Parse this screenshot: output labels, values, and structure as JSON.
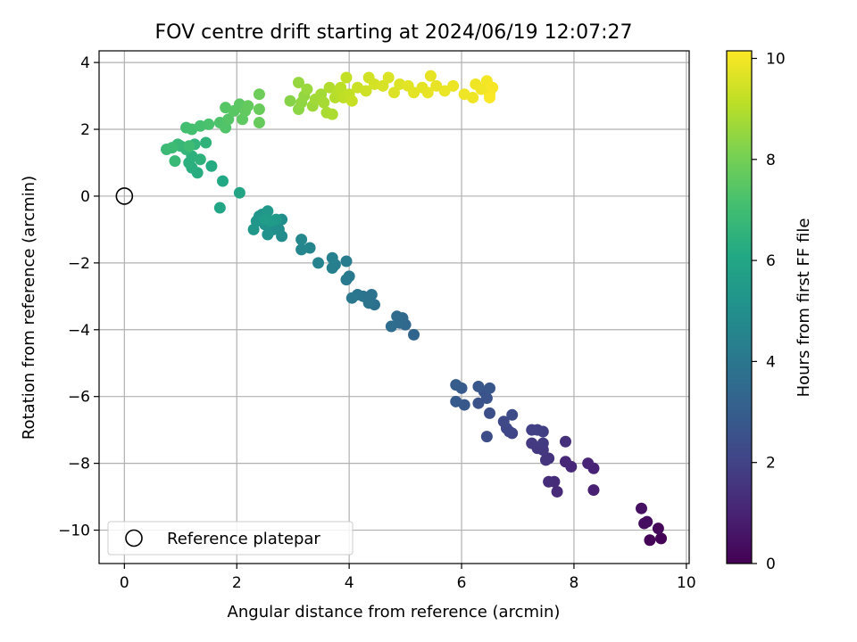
{
  "chart_data": {
    "type": "scatter",
    "title": "FOV centre drift starting at 2024/06/19 12:07:27",
    "xlabel": "Angular distance from reference (arcmin)",
    "ylabel": "Rotation from reference (arcmin)",
    "xlim": [
      -0.45,
      10.05
    ],
    "ylim": [
      -11.0,
      4.35
    ],
    "xticks": [
      0,
      2,
      4,
      6,
      8,
      10
    ],
    "yticks": [
      -10,
      -8,
      -6,
      -4,
      -2,
      0,
      2,
      4
    ],
    "xtick_labels": [
      "0",
      "2",
      "4",
      "6",
      "8",
      "10"
    ],
    "ytick_labels": [
      "−10",
      "−8",
      "−6",
      "−4",
      "−2",
      "0",
      "2",
      "4"
    ],
    "grid": true,
    "colormap": "viridis",
    "colorbar": {
      "label": "Hours from first FF file",
      "min": 0,
      "max": 10.15,
      "ticks": [
        0,
        2,
        4,
        6,
        8,
        10
      ],
      "tick_labels": [
        "0",
        "2",
        "4",
        "6",
        "8",
        "10"
      ]
    },
    "legend": {
      "placement": "lower-left",
      "entries": [
        {
          "label": "Reference platepar",
          "marker": "open-circle"
        }
      ]
    },
    "reference_point": {
      "x": 0,
      "y": 0
    },
    "points": [
      {
        "x": 9.55,
        "y": -10.25,
        "t": 0.05
      },
      {
        "x": 9.35,
        "y": -10.3,
        "t": 0.1
      },
      {
        "x": 9.5,
        "y": -9.95,
        "t": 0.2
      },
      {
        "x": 9.3,
        "y": -9.75,
        "t": 0.3
      },
      {
        "x": 9.25,
        "y": -9.8,
        "t": 0.35
      },
      {
        "x": 9.2,
        "y": -9.35,
        "t": 0.45
      },
      {
        "x": 8.35,
        "y": -8.8,
        "t": 0.9
      },
      {
        "x": 8.35,
        "y": -8.15,
        "t": 1.0
      },
      {
        "x": 8.25,
        "y": -8.0,
        "t": 1.05
      },
      {
        "x": 7.95,
        "y": -8.1,
        "t": 1.1
      },
      {
        "x": 7.85,
        "y": -7.95,
        "t": 1.15
      },
      {
        "x": 7.7,
        "y": -8.85,
        "t": 1.2
      },
      {
        "x": 7.65,
        "y": -8.55,
        "t": 1.25
      },
      {
        "x": 7.55,
        "y": -8.55,
        "t": 1.3
      },
      {
        "x": 7.85,
        "y": -7.35,
        "t": 1.4
      },
      {
        "x": 7.55,
        "y": -7.85,
        "t": 1.5
      },
      {
        "x": 7.5,
        "y": -7.9,
        "t": 1.55
      },
      {
        "x": 7.45,
        "y": -7.6,
        "t": 1.6
      },
      {
        "x": 7.35,
        "y": -7.55,
        "t": 1.65
      },
      {
        "x": 7.25,
        "y": -7.4,
        "t": 1.7
      },
      {
        "x": 7.45,
        "y": -7.4,
        "t": 1.75
      },
      {
        "x": 7.45,
        "y": -7.05,
        "t": 1.85
      },
      {
        "x": 7.35,
        "y": -7.0,
        "t": 1.9
      },
      {
        "x": 7.25,
        "y": -7.0,
        "t": 1.95
      },
      {
        "x": 6.9,
        "y": -7.1,
        "t": 2.05
      },
      {
        "x": 6.85,
        "y": -7.05,
        "t": 2.1
      },
      {
        "x": 6.8,
        "y": -6.95,
        "t": 2.15
      },
      {
        "x": 6.75,
        "y": -6.75,
        "t": 2.2
      },
      {
        "x": 6.9,
        "y": -6.55,
        "t": 2.3
      },
      {
        "x": 6.45,
        "y": -7.2,
        "t": 2.35
      },
      {
        "x": 6.5,
        "y": -6.5,
        "t": 2.45
      },
      {
        "x": 6.3,
        "y": -6.2,
        "t": 2.55
      },
      {
        "x": 6.45,
        "y": -6.05,
        "t": 2.6
      },
      {
        "x": 6.4,
        "y": -5.85,
        "t": 2.65
      },
      {
        "x": 6.5,
        "y": -5.75,
        "t": 2.7
      },
      {
        "x": 6.3,
        "y": -5.7,
        "t": 2.75
      },
      {
        "x": 6.05,
        "y": -6.25,
        "t": 2.8
      },
      {
        "x": 5.9,
        "y": -6.15,
        "t": 2.85
      },
      {
        "x": 6.0,
        "y": -5.75,
        "t": 2.9
      },
      {
        "x": 5.9,
        "y": -5.65,
        "t": 2.95
      },
      {
        "x": 5.15,
        "y": -4.15,
        "t": 3.3
      },
      {
        "x": 5.0,
        "y": -3.85,
        "t": 3.4
      },
      {
        "x": 4.95,
        "y": -3.65,
        "t": 3.45
      },
      {
        "x": 4.9,
        "y": -3.8,
        "t": 3.5
      },
      {
        "x": 4.85,
        "y": -3.6,
        "t": 3.55
      },
      {
        "x": 4.75,
        "y": -3.9,
        "t": 3.6
      },
      {
        "x": 4.45,
        "y": -3.25,
        "t": 3.75
      },
      {
        "x": 4.4,
        "y": -2.95,
        "t": 3.8
      },
      {
        "x": 4.35,
        "y": -3.2,
        "t": 3.85
      },
      {
        "x": 4.25,
        "y": -3.0,
        "t": 3.9
      },
      {
        "x": 4.15,
        "y": -2.95,
        "t": 3.95
      },
      {
        "x": 4.05,
        "y": -3.05,
        "t": 4.0
      },
      {
        "x": 4.0,
        "y": -2.4,
        "t": 4.1
      },
      {
        "x": 3.95,
        "y": -2.5,
        "t": 4.15
      },
      {
        "x": 3.95,
        "y": -1.95,
        "t": 4.2
      },
      {
        "x": 3.75,
        "y": -2.05,
        "t": 4.3
      },
      {
        "x": 3.7,
        "y": -2.15,
        "t": 4.35
      },
      {
        "x": 3.7,
        "y": -1.85,
        "t": 4.4
      },
      {
        "x": 3.45,
        "y": -2.0,
        "t": 4.5
      },
      {
        "x": 3.3,
        "y": -1.55,
        "t": 4.6
      },
      {
        "x": 3.15,
        "y": -1.6,
        "t": 4.65
      },
      {
        "x": 3.15,
        "y": -1.3,
        "t": 4.7
      },
      {
        "x": 2.8,
        "y": -1.2,
        "t": 4.85
      },
      {
        "x": 2.75,
        "y": -1.0,
        "t": 4.9
      },
      {
        "x": 2.8,
        "y": -0.7,
        "t": 4.95
      },
      {
        "x": 2.65,
        "y": -1.0,
        "t": 5.0
      },
      {
        "x": 2.6,
        "y": -0.9,
        "t": 5.05
      },
      {
        "x": 2.55,
        "y": -1.15,
        "t": 5.1
      },
      {
        "x": 2.5,
        "y": -0.85,
        "t": 5.15
      },
      {
        "x": 2.45,
        "y": -0.55,
        "t": 5.2
      },
      {
        "x": 2.4,
        "y": -0.6,
        "t": 5.25
      },
      {
        "x": 2.35,
        "y": -0.75,
        "t": 5.3
      },
      {
        "x": 2.3,
        "y": -1.0,
        "t": 5.35
      },
      {
        "x": 2.55,
        "y": -0.45,
        "t": 5.4
      },
      {
        "x": 2.7,
        "y": -0.7,
        "t": 5.45
      },
      {
        "x": 2.6,
        "y": -0.75,
        "t": 5.5
      },
      {
        "x": 2.5,
        "y": -0.7,
        "t": 5.55
      },
      {
        "x": 2.05,
        "y": 0.1,
        "t": 5.9
      },
      {
        "x": 1.7,
        "y": -0.35,
        "t": 6.0
      },
      {
        "x": 1.75,
        "y": 0.45,
        "t": 6.1
      },
      {
        "x": 1.55,
        "y": 0.9,
        "t": 6.2
      },
      {
        "x": 1.3,
        "y": 0.7,
        "t": 6.3
      },
      {
        "x": 1.2,
        "y": 0.85,
        "t": 6.35
      },
      {
        "x": 1.15,
        "y": 1.0,
        "t": 6.4
      },
      {
        "x": 1.2,
        "y": 1.2,
        "t": 6.45
      },
      {
        "x": 1.35,
        "y": 1.1,
        "t": 6.5
      },
      {
        "x": 1.45,
        "y": 1.6,
        "t": 6.55
      },
      {
        "x": 1.25,
        "y": 1.55,
        "t": 6.6
      },
      {
        "x": 1.1,
        "y": 1.4,
        "t": 6.65
      },
      {
        "x": 1.0,
        "y": 1.5,
        "t": 6.7
      },
      {
        "x": 0.95,
        "y": 1.55,
        "t": 6.75
      },
      {
        "x": 0.9,
        "y": 1.05,
        "t": 6.8
      },
      {
        "x": 0.75,
        "y": 1.4,
        "t": 6.85
      },
      {
        "x": 0.85,
        "y": 1.45,
        "t": 6.9
      },
      {
        "x": 1.15,
        "y": 1.5,
        "t": 6.95
      },
      {
        "x": 1.1,
        "y": 2.05,
        "t": 7.05
      },
      {
        "x": 1.2,
        "y": 2.0,
        "t": 7.1
      },
      {
        "x": 1.35,
        "y": 2.1,
        "t": 7.15
      },
      {
        "x": 1.5,
        "y": 2.15,
        "t": 7.2
      },
      {
        "x": 1.7,
        "y": 2.2,
        "t": 7.3
      },
      {
        "x": 1.8,
        "y": 2.05,
        "t": 7.35
      },
      {
        "x": 1.85,
        "y": 2.3,
        "t": 7.4
      },
      {
        "x": 1.8,
        "y": 2.65,
        "t": 7.45
      },
      {
        "x": 1.95,
        "y": 2.55,
        "t": 7.5
      },
      {
        "x": 2.05,
        "y": 2.75,
        "t": 7.55
      },
      {
        "x": 2.1,
        "y": 2.3,
        "t": 7.6
      },
      {
        "x": 2.15,
        "y": 2.55,
        "t": 7.65
      },
      {
        "x": 2.2,
        "y": 2.7,
        "t": 7.7
      },
      {
        "x": 2.4,
        "y": 2.2,
        "t": 7.75
      },
      {
        "x": 2.4,
        "y": 2.6,
        "t": 7.8
      },
      {
        "x": 2.4,
        "y": 3.05,
        "t": 7.9
      },
      {
        "x": 2.95,
        "y": 2.85,
        "t": 8.3
      },
      {
        "x": 3.1,
        "y": 2.6,
        "t": 8.4
      },
      {
        "x": 3.15,
        "y": 2.8,
        "t": 8.45
      },
      {
        "x": 3.2,
        "y": 3.0,
        "t": 8.5
      },
      {
        "x": 3.1,
        "y": 3.4,
        "t": 8.55
      },
      {
        "x": 3.25,
        "y": 3.2,
        "t": 8.6
      },
      {
        "x": 3.35,
        "y": 2.7,
        "t": 8.65
      },
      {
        "x": 3.4,
        "y": 2.9,
        "t": 8.7
      },
      {
        "x": 3.5,
        "y": 3.05,
        "t": 8.75
      },
      {
        "x": 3.55,
        "y": 2.8,
        "t": 8.8
      },
      {
        "x": 3.6,
        "y": 2.5,
        "t": 8.85
      },
      {
        "x": 3.7,
        "y": 2.45,
        "t": 8.9
      },
      {
        "x": 3.65,
        "y": 3.25,
        "t": 8.95
      },
      {
        "x": 3.75,
        "y": 2.95,
        "t": 9.0
      },
      {
        "x": 3.8,
        "y": 3.1,
        "t": 9.05
      },
      {
        "x": 3.85,
        "y": 3.25,
        "t": 9.1
      },
      {
        "x": 3.9,
        "y": 2.95,
        "t": 9.15
      },
      {
        "x": 4.0,
        "y": 3.05,
        "t": 9.2
      },
      {
        "x": 3.95,
        "y": 3.55,
        "t": 9.25
      },
      {
        "x": 4.05,
        "y": 2.85,
        "t": 9.3
      },
      {
        "x": 4.15,
        "y": 3.25,
        "t": 9.35
      },
      {
        "x": 4.3,
        "y": 3.15,
        "t": 9.4
      },
      {
        "x": 4.35,
        "y": 3.55,
        "t": 9.45
      },
      {
        "x": 4.45,
        "y": 3.35,
        "t": 9.5
      },
      {
        "x": 4.6,
        "y": 3.3,
        "t": 9.55
      },
      {
        "x": 4.7,
        "y": 3.55,
        "t": 9.6
      },
      {
        "x": 4.8,
        "y": 3.1,
        "t": 9.62
      },
      {
        "x": 4.9,
        "y": 3.35,
        "t": 9.65
      },
      {
        "x": 5.05,
        "y": 3.3,
        "t": 9.7
      },
      {
        "x": 5.15,
        "y": 3.1,
        "t": 9.72
      },
      {
        "x": 5.3,
        "y": 3.25,
        "t": 9.75
      },
      {
        "x": 5.4,
        "y": 3.1,
        "t": 9.78
      },
      {
        "x": 5.45,
        "y": 3.6,
        "t": 9.8
      },
      {
        "x": 5.55,
        "y": 3.3,
        "t": 9.82
      },
      {
        "x": 5.7,
        "y": 3.15,
        "t": 9.85
      },
      {
        "x": 5.85,
        "y": 3.3,
        "t": 9.87
      },
      {
        "x": 6.05,
        "y": 3.05,
        "t": 9.9
      },
      {
        "x": 6.2,
        "y": 2.95,
        "t": 9.92
      },
      {
        "x": 6.25,
        "y": 3.35,
        "t": 9.94
      },
      {
        "x": 6.35,
        "y": 3.2,
        "t": 9.96
      },
      {
        "x": 6.45,
        "y": 3.45,
        "t": 9.98
      },
      {
        "x": 6.5,
        "y": 3.05,
        "t": 10.0
      },
      {
        "x": 6.55,
        "y": 3.25,
        "t": 10.05
      },
      {
        "x": 6.5,
        "y": 2.95,
        "t": 10.1
      }
    ]
  }
}
